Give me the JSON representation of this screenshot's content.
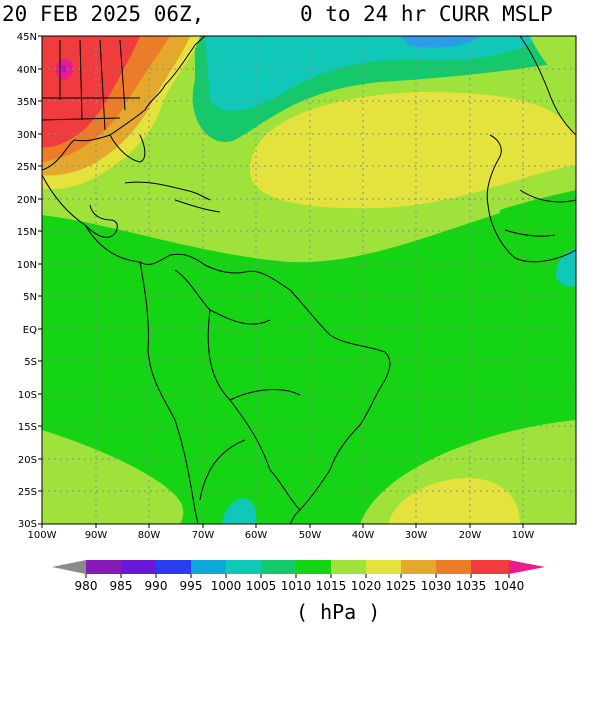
{
  "title": {
    "date_time": "20 FEB 2025 06Z,",
    "range": "0 to",
    "product": "24 hr CURR MSLP"
  },
  "map": {
    "lat_labels": [
      "45N",
      "40N",
      "35N",
      "30N",
      "25N",
      "20N",
      "15N",
      "10N",
      "5N",
      "EQ",
      "5S",
      "10S",
      "15S",
      "20S",
      "25S",
      "30S"
    ],
    "lon_labels": [
      "100W",
      "90W",
      "80W",
      "70W",
      "60W",
      "50W",
      "40W",
      "30W",
      "20W",
      "10W"
    ]
  },
  "legend": {
    "levels": [
      "980",
      "985",
      "990",
      "995",
      "1000",
      "1005",
      "1010",
      "1015",
      "1020",
      "1025",
      "1030",
      "1035",
      "1040"
    ],
    "colors": [
      "#8a8a8a",
      "#8a1ab8",
      "#6a18d8",
      "#2a3ef0",
      "#0ea8d8",
      "#10c8b8",
      "#14c86c",
      "#14d414",
      "#a0e23c",
      "#e4e23c",
      "#e4a82c",
      "#ec7c28",
      "#f03c3c",
      "#e81c8c"
    ],
    "units": "( hPa )"
  }
}
